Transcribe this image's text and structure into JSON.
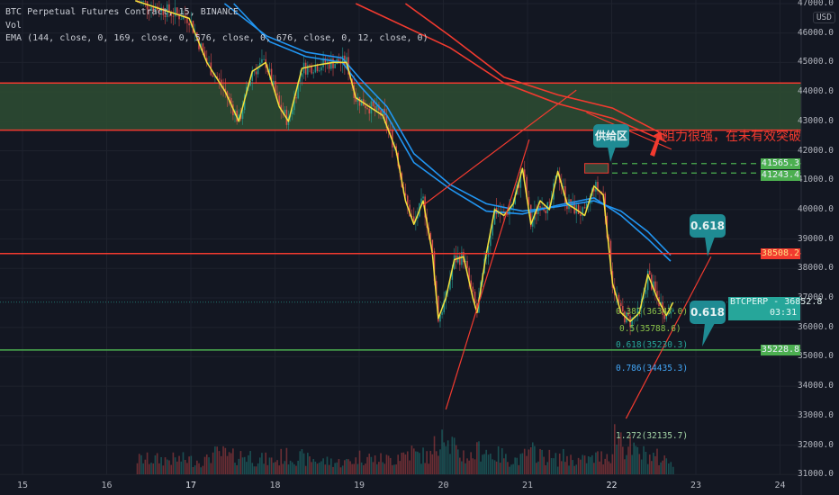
{
  "header": {
    "symbol_line": "BTC Perpetual Futures Contract, 15, BINANCE",
    "vol_label": "Vol",
    "ema_line": "EMA (144, close, 0, 169, close, 0, 576, close, 0, 676, close, 0, 12, close, 0)"
  },
  "currency": "USD",
  "colors": {
    "bg": "#131722",
    "up": "#26a69a",
    "down": "#ef5350",
    "ema_fast": "#f5e13c",
    "ema_mid": "#2196f3",
    "ema_slow": "#f23a2f",
    "zone": "#2e4d33",
    "callout": "#1f8b93"
  },
  "chart_data": {
    "type": "candlestick",
    "xlabel": "",
    "ylabel": "",
    "xlim": [
      14.9,
      24.2
    ],
    "ylim": [
      31000,
      47000
    ],
    "x_ticks": [
      "15",
      "16",
      "17",
      "18",
      "19",
      "20",
      "21",
      "22",
      "23",
      "24"
    ],
    "y_ticks": [
      "47000.0",
      "46000.0",
      "45000.0",
      "44000.0",
      "43000.0",
      "42000.0",
      "41000.0",
      "40000.0",
      "39000.0",
      "38000.0",
      "37000.0",
      "36000.0",
      "35000.0",
      "34000.0",
      "33000.0",
      "32000.0",
      "31000.0"
    ],
    "grid": true,
    "close_path": [
      [
        16.34,
        47100
      ],
      [
        16.98,
        46500
      ],
      [
        17.19,
        45000
      ],
      [
        17.41,
        44000
      ],
      [
        17.57,
        43000
      ],
      [
        17.73,
        44700
      ],
      [
        17.89,
        45000
      ],
      [
        18.05,
        43500
      ],
      [
        18.16,
        43000
      ],
      [
        18.32,
        44800
      ],
      [
        18.48,
        44900
      ],
      [
        18.69,
        45000
      ],
      [
        18.85,
        45000
      ],
      [
        18.96,
        43800
      ],
      [
        19.12,
        43500
      ],
      [
        19.28,
        43200
      ],
      [
        19.44,
        42000
      ],
      [
        19.55,
        40300
      ],
      [
        19.65,
        39500
      ],
      [
        19.76,
        40300
      ],
      [
        19.87,
        38500
      ],
      [
        19.94,
        36300
      ],
      [
        20.03,
        37000
      ],
      [
        20.13,
        38300
      ],
      [
        20.24,
        38400
      ],
      [
        20.35,
        37000
      ],
      [
        20.4,
        36500
      ],
      [
        20.51,
        38500
      ],
      [
        20.61,
        40000
      ],
      [
        20.72,
        39800
      ],
      [
        20.83,
        40200
      ],
      [
        20.94,
        41400
      ],
      [
        21.04,
        39500
      ],
      [
        21.15,
        40300
      ],
      [
        21.26,
        40000
      ],
      [
        21.36,
        41300
      ],
      [
        21.47,
        40200
      ],
      [
        21.58,
        40000
      ],
      [
        21.68,
        39800
      ],
      [
        21.79,
        40800
      ],
      [
        21.9,
        40500
      ],
      [
        22.01,
        37500
      ],
      [
        22.11,
        36500
      ],
      [
        22.22,
        36200
      ],
      [
        22.33,
        36500
      ],
      [
        22.43,
        37800
      ],
      [
        22.54,
        37000
      ],
      [
        22.65,
        36400
      ],
      [
        22.73,
        36852.8
      ]
    ],
    "volume": [
      30,
      28,
      40,
      35,
      38,
      30,
      28,
      36,
      34,
      30,
      26,
      24,
      28,
      35,
      30,
      30,
      40,
      45,
      38,
      36,
      55,
      100,
      60,
      40,
      35,
      45,
      50,
      40,
      38,
      30,
      30,
      40,
      45,
      35,
      30,
      35,
      30,
      28,
      30,
      35,
      40,
      80,
      55,
      45,
      40,
      35,
      30,
      28,
      25
    ],
    "ema_series": [
      {
        "name": "EMA 144",
        "color": "#2196f3",
        "points": [
          [
            17.51,
            47000
          ],
          [
            17.94,
            45700
          ],
          [
            18.37,
            45200
          ],
          [
            18.8,
            45000
          ],
          [
            19.01,
            44200
          ],
          [
            19.33,
            43200
          ],
          [
            19.65,
            41600
          ],
          [
            20.08,
            40700
          ],
          [
            20.51,
            39950
          ],
          [
            20.94,
            39850
          ],
          [
            21.36,
            40150
          ],
          [
            21.79,
            40400
          ],
          [
            22.11,
            39800
          ],
          [
            22.43,
            39000
          ],
          [
            22.7,
            38250
          ]
        ]
      },
      {
        "name": "EMA 169",
        "color": "#2196f3",
        "points": [
          [
            17.4,
            47000
          ],
          [
            17.9,
            45900
          ],
          [
            18.37,
            45350
          ],
          [
            18.8,
            45150
          ],
          [
            19.01,
            44450
          ],
          [
            19.33,
            43500
          ],
          [
            19.65,
            41900
          ],
          [
            20.08,
            40850
          ],
          [
            20.51,
            40200
          ],
          [
            20.94,
            39950
          ],
          [
            21.36,
            40100
          ],
          [
            21.79,
            40300
          ],
          [
            22.11,
            39950
          ],
          [
            22.43,
            39250
          ],
          [
            22.7,
            38450
          ]
        ]
      },
      {
        "name": "EMA 576",
        "color": "#f23a2f",
        "points": [
          [
            19.55,
            47000
          ],
          [
            20.08,
            45900
          ],
          [
            20.72,
            44500
          ],
          [
            21.36,
            43900
          ],
          [
            22.01,
            43450
          ],
          [
            22.65,
            42500
          ]
        ]
      },
      {
        "name": "EMA 676",
        "color": "#f23a2f",
        "points": [
          [
            18.96,
            47000
          ],
          [
            20.08,
            45500
          ],
          [
            20.72,
            44300
          ],
          [
            21.36,
            43600
          ],
          [
            22.01,
            43100
          ],
          [
            22.65,
            42300
          ]
        ]
      }
    ],
    "zone": {
      "top": 44300,
      "bottom": 42700
    },
    "levels": [
      {
        "price": 38508.2,
        "label": "38508.2",
        "color": "#f23a2f",
        "style": "solid"
      },
      {
        "price": 35228.8,
        "label": "35228.8",
        "color": "#4caf50",
        "style": "solid"
      },
      {
        "price": 41565.3,
        "label": "41565.3",
        "color": "#4caf50",
        "style": "dashed"
      },
      {
        "price": 41243.4,
        "label": "41243.4",
        "color": "#4caf50",
        "style": "dashed"
      }
    ],
    "last_price": {
      "symbol": "BTCPERP",
      "price": "36852.8",
      "countdown": "03:31"
    },
    "trendlines": [
      [
        [
          19.76,
          40150
        ],
        [
          21.58,
          44060
        ]
      ],
      [
        [
          20.03,
          33210
        ],
        [
          21.02,
          42380
        ]
      ],
      [
        [
          22.17,
          32900
        ],
        [
          23.18,
          38400
        ]
      ],
      [
        [
          21.7,
          43300
        ],
        [
          22.71,
          42050
        ]
      ]
    ],
    "supply_box": {
      "from": 21.68,
      "to": 21.96,
      "top": 41565.3,
      "bottom": 41243.4
    },
    "fib_levels": [
      {
        "label": "0.382(36347.0)",
        "color": "#8bc34a"
      },
      {
        "label": "0.5(35788.6)",
        "color": "#8bc34a"
      },
      {
        "label": "0.618(35230.3)",
        "color": "#26a69a"
      },
      {
        "label": "0.786(34435.3)",
        "color": "#42a5f5"
      },
      {
        "label": "1.272(32135.7)",
        "color": "#a5d6a7"
      }
    ],
    "annotations": {
      "supply": "供给区",
      "resistance": "阻力很强，在未有效突破",
      "fib1": "0.618",
      "fib2": "0.618"
    }
  }
}
